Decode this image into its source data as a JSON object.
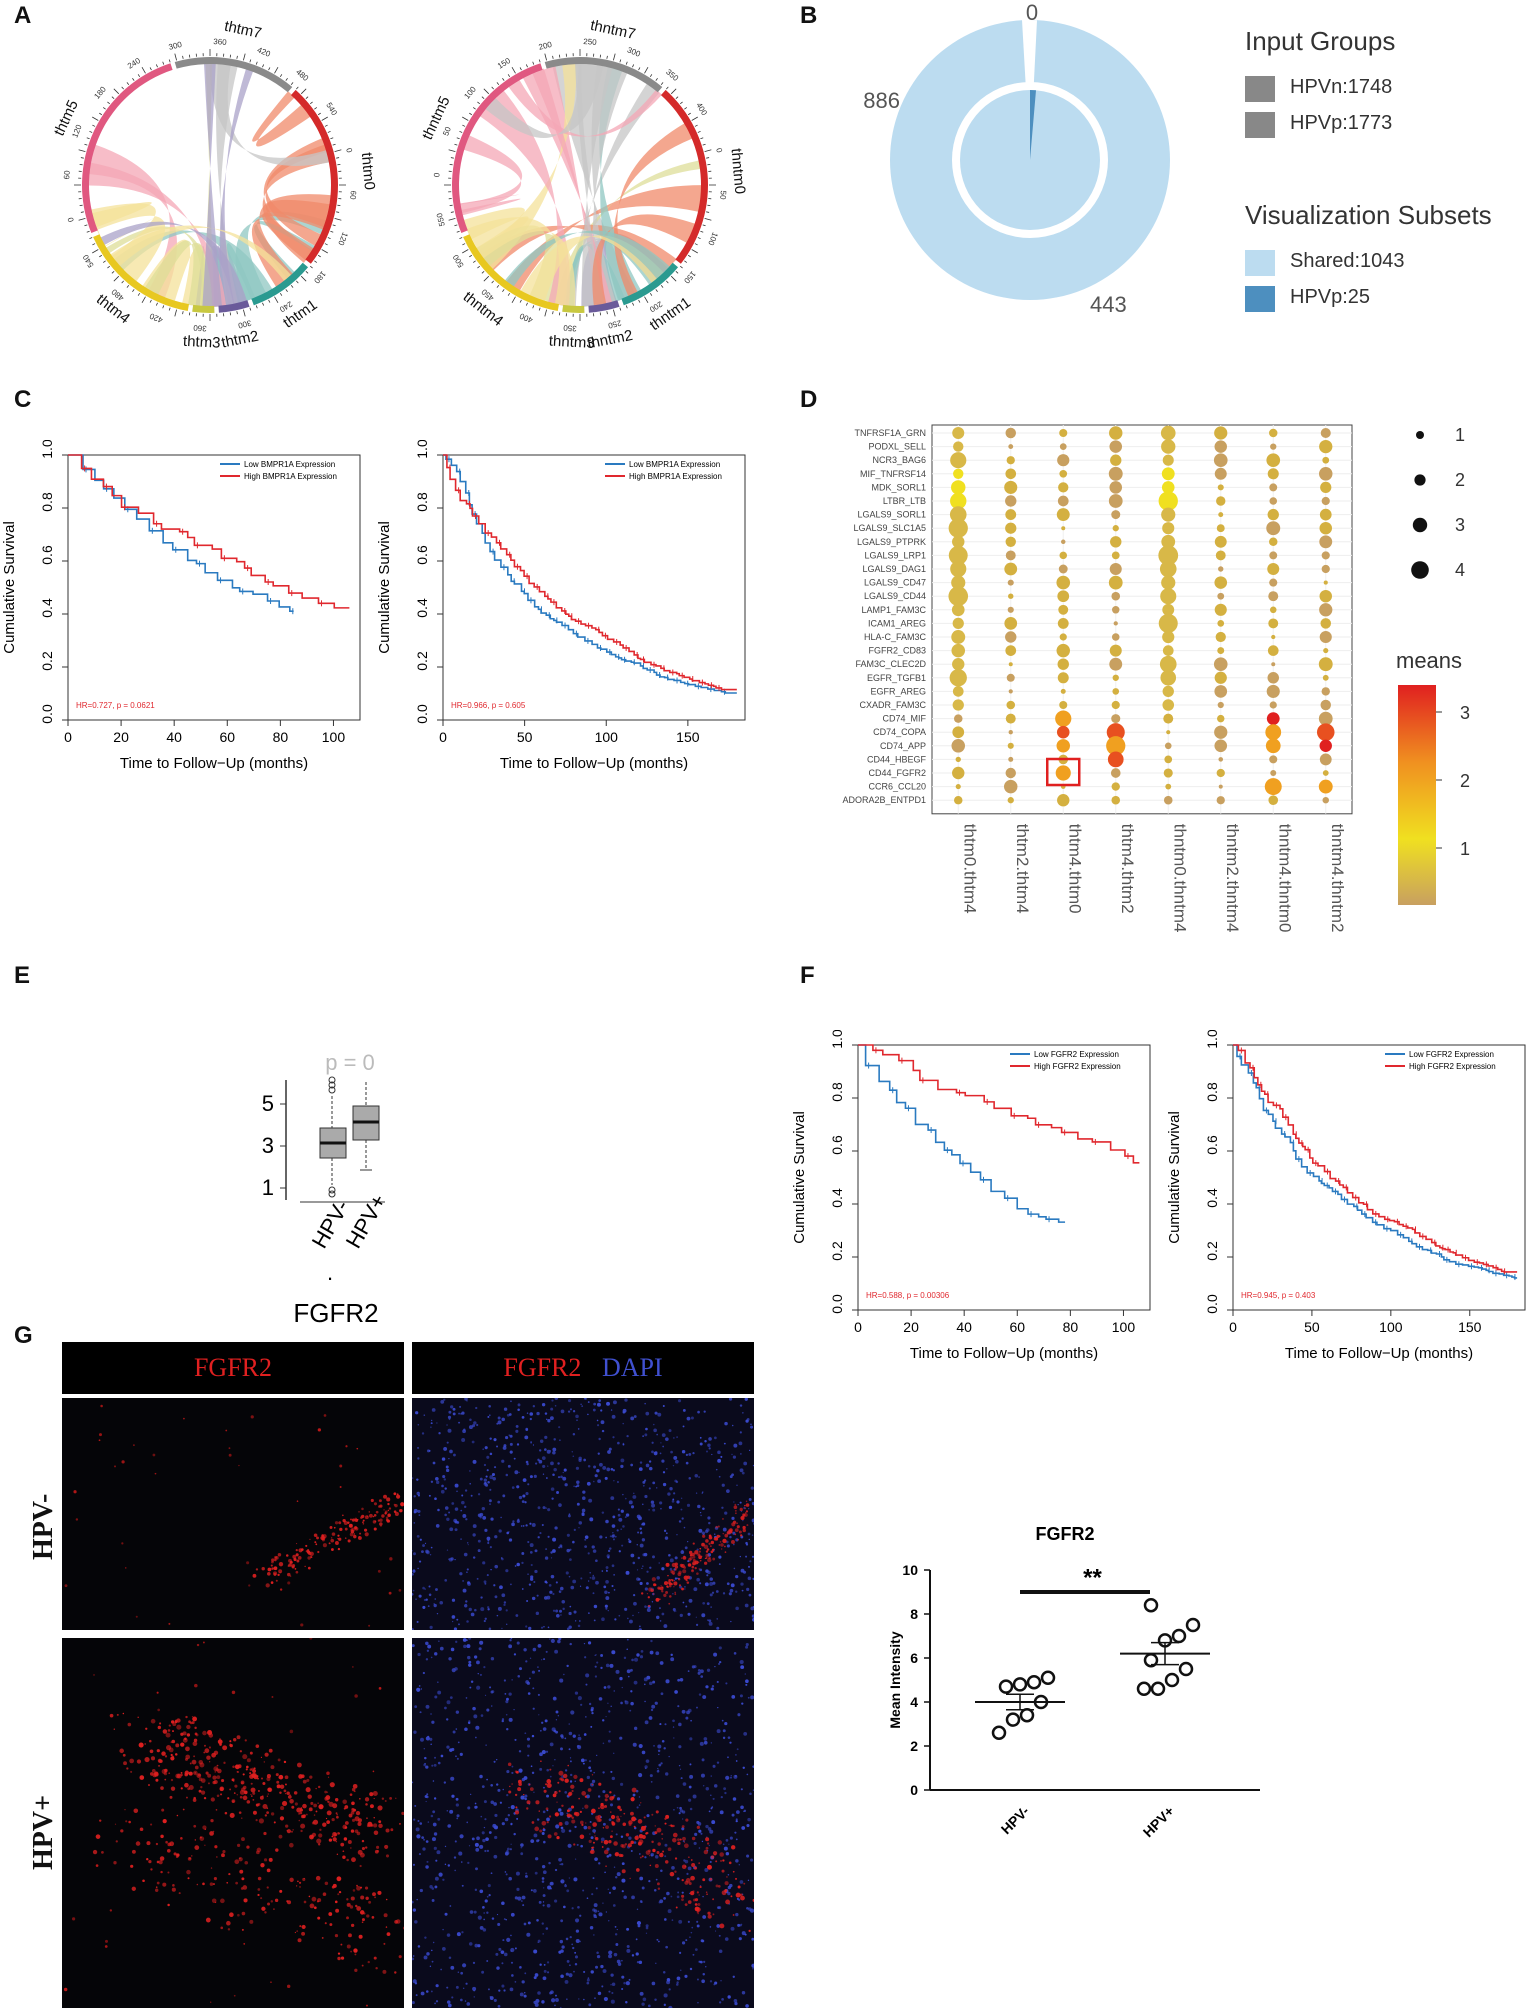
{
  "panel_labels": {
    "A": "A",
    "B": "B",
    "C": "C",
    "D": "D",
    "E": "E",
    "F": "F",
    "G": "G"
  },
  "chord_left": {
    "sectors": [
      {
        "name": "thtm5",
        "color": "#e05880"
      },
      {
        "name": "thtm7",
        "color": "#8a8a8a"
      },
      {
        "name": "thtm0",
        "color": "#d42a2a"
      },
      {
        "name": "thtm1",
        "color": "#2a9a90"
      },
      {
        "name": "thtm2",
        "color": "#6a5a9a"
      },
      {
        "name": "thtm3",
        "color": "#c8c840"
      },
      {
        "name": "thtm4",
        "color": "#e8c820"
      }
    ],
    "ticks": [
      "360",
      "420",
      "480",
      "540",
      "0",
      "60",
      "120",
      "180",
      "240",
      "300",
      "360",
      "420",
      "480",
      "540",
      "0",
      "60",
      "120",
      "180",
      "240",
      "300"
    ]
  },
  "chord_right": {
    "sectors": [
      {
        "name": "thntm5",
        "color": "#e05880"
      },
      {
        "name": "thntm7",
        "color": "#8a8a8a"
      },
      {
        "name": "thntm0",
        "color": "#d42a2a"
      },
      {
        "name": "thntm1",
        "color": "#2a9a90"
      },
      {
        "name": "thntm2",
        "color": "#6a5a9a"
      },
      {
        "name": "thntm3",
        "color": "#c8c840"
      },
      {
        "name": "thntm4",
        "color": "#e8c820"
      }
    ],
    "ticks": [
      "350",
      "400",
      "450",
      "500",
      "550",
      "0",
      "50",
      "100",
      "150",
      "200",
      "250",
      "300",
      "350",
      "400",
      "0",
      "50",
      "100",
      "150",
      "200",
      "250"
    ]
  },
  "donut": {
    "outer_top": "0",
    "outer_left": "886",
    "outer_bottom": "443",
    "legend_input_title": "Input Groups",
    "input_groups": [
      {
        "label": "HPVn:1748",
        "color": "#888888"
      },
      {
        "label": "HPVp:1773",
        "color": "#888888"
      }
    ],
    "legend_vis_title": "Visualization Subsets",
    "subsets": [
      {
        "label": "Shared:1043",
        "color": "#bcdcf0"
      },
      {
        "label": "HPVp:25",
        "color": "#4d8fbf"
      }
    ]
  },
  "km_c_left": {
    "legend": [
      "Low BMPR1A Expression",
      "High BMPR1A Expression"
    ],
    "hr": "HR=0.727, p = 0.0621",
    "ylabel": "Cumulative Survival",
    "xlabel": "Time to Follow−Up (months)",
    "xticks": [
      "0",
      "20",
      "40",
      "60",
      "80",
      "100"
    ],
    "yticks": [
      "0.0",
      "0.2",
      "0.4",
      "0.6",
      "0.8",
      "1.0"
    ]
  },
  "km_c_right": {
    "legend": [
      "Low BMPR1A Expression",
      "High BMPR1A Expression"
    ],
    "hr": "HR=0.966, p = 0.605",
    "ylabel": "Cumulative Survival",
    "xlabel": "Time to Follow−Up (months)",
    "xticks": [
      "0",
      "50",
      "100",
      "150"
    ],
    "yticks": [
      "0.0",
      "0.2",
      "0.4",
      "0.6",
      "0.8",
      "1.0"
    ]
  },
  "dotplot": {
    "rows": [
      "TNFRSF1A_GRN",
      "PODXL_SELL",
      "NCR3_BAG6",
      "MIF_TNFRSF14",
      "MDK_SORL1",
      "LTBR_LTB",
      "LGALS9_SORL1",
      "LGALS9_SLC1A5",
      "LGALS9_PTPRK",
      "LGALS9_LRP1",
      "LGALS9_DAG1",
      "LGALS9_CD47",
      "LGALS9_CD44",
      "LAMP1_FAM3C",
      "ICAM1_AREG",
      "HLA-C_FAM3C",
      "FGFR2_CD83",
      "FAM3C_CLEC2D",
      "EGFR_TGFB1",
      "EGFR_AREG",
      "CXADR_FAM3C",
      "CD74_MIF",
      "CD74_COPA",
      "CD74_APP",
      "CD44_HBEGF",
      "CD44_FGFR2",
      "CCR6_CCL20",
      "ADORA2B_ENTPD1"
    ],
    "cols": [
      "thtm0.thtm4",
      "thtm2.thtm4",
      "thtm4.thtm0",
      "thtm4.thtm2",
      "thntm0.thntm4",
      "thntm2.thntm4",
      "thntm4.thntm0",
      "thntm4.thntm2"
    ],
    "size_legend": [
      "1",
      "2",
      "3",
      "4"
    ],
    "color_title": "means",
    "color_ticks": [
      "1",
      "2",
      "3"
    ]
  },
  "boxplot": {
    "pvalue": "p = 0",
    "yticks": [
      "1",
      "3",
      "5"
    ],
    "groups": [
      "HPV-",
      "HPV+"
    ],
    "dot": ".",
    "gene": "FGFR2"
  },
  "km_f_left": {
    "legend": [
      "Low FGFR2 Expression",
      "High FGFR2 Expression"
    ],
    "hr": "HR=0.588, p = 0.00306",
    "ylabel": "Cumulative Survival",
    "xlabel": "Time to Follow−Up (months)",
    "xticks": [
      "0",
      "20",
      "40",
      "60",
      "80",
      "100"
    ],
    "yticks": [
      "0.0",
      "0.2",
      "0.4",
      "0.6",
      "0.8",
      "1.0"
    ]
  },
  "km_f_right": {
    "legend": [
      "Low FGFR2 Expression",
      "High FGFR2 Expression"
    ],
    "hr": "HR=0.945, p = 0.403",
    "ylabel": "Cumulative Survival",
    "xlabel": "Time to Follow−Up (months)",
    "xticks": [
      "0",
      "50",
      "100",
      "150"
    ],
    "yticks": [
      "0.0",
      "0.2",
      "0.4",
      "0.6",
      "0.8",
      "1.0"
    ]
  },
  "micro": {
    "head_left": "FGFR2",
    "head_right_red": "FGFR2",
    "head_right_blue": "DAPI",
    "row_top": "HPV-",
    "row_bottom": "HPV+"
  },
  "chart_data": {
    "type": "scatter",
    "title": "FGFR2",
    "ylabel": "Mean Intensity",
    "xlabel": "",
    "categories": [
      "HPV-",
      "HPV+"
    ],
    "ylim": [
      0,
      10
    ],
    "yticks": [
      "0",
      "2",
      "4",
      "6",
      "8",
      "10"
    ],
    "significance": "**",
    "series": [
      {
        "name": "HPV-",
        "values": [
          2.6,
          3.2,
          3.4,
          4.0,
          4.7,
          4.8,
          4.9,
          5.1
        ],
        "mean": 4.0,
        "sem": 0.35
      },
      {
        "name": "HPV+",
        "values": [
          4.6,
          4.6,
          5.0,
          5.5,
          5.9,
          6.8,
          7.0,
          7.5,
          8.4
        ],
        "mean": 6.2,
        "sem": 0.5
      }
    ]
  }
}
